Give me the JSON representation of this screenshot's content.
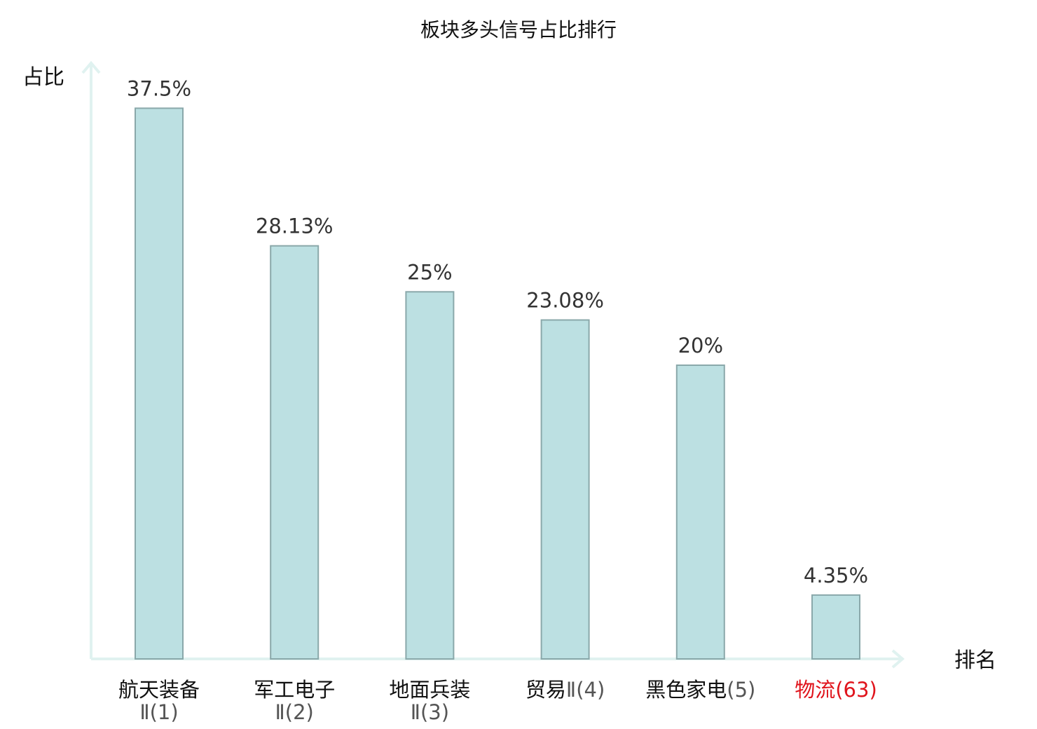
{
  "chart_data": {
    "type": "bar",
    "title": "板块多头信号占比排行",
    "ylabel": "占比",
    "xlabel": "排名",
    "ylim": [
      0,
      40
    ],
    "grid": false,
    "categories": [
      {
        "name": "航天装备",
        "rank": "Ⅱ(1)",
        "highlight": false
      },
      {
        "name": "军工电子",
        "rank": "Ⅱ(2)",
        "highlight": false
      },
      {
        "name": "地面兵装",
        "rank": "Ⅱ(3)",
        "highlight": false
      },
      {
        "name": "贸易",
        "rank": "Ⅱ(4)",
        "highlight": false
      },
      {
        "name": "黑色家电",
        "rank": "(5)",
        "highlight": false
      },
      {
        "name": "物流",
        "rank": "(63)",
        "highlight": true
      }
    ],
    "values": [
      37.5,
      28.13,
      25,
      23.08,
      20,
      4.35
    ],
    "value_labels": [
      "37.5%",
      "28.13%",
      "25%",
      "23.08%",
      "20%",
      "4.35%"
    ]
  },
  "colors": {
    "bar_fill": "#bce0e2",
    "bar_stroke": "#8aa8aa",
    "axis": "#e0f2f0",
    "text": "#111111",
    "value_text": "#333333",
    "rank_text": "#555555",
    "highlight": "#e0141c"
  }
}
